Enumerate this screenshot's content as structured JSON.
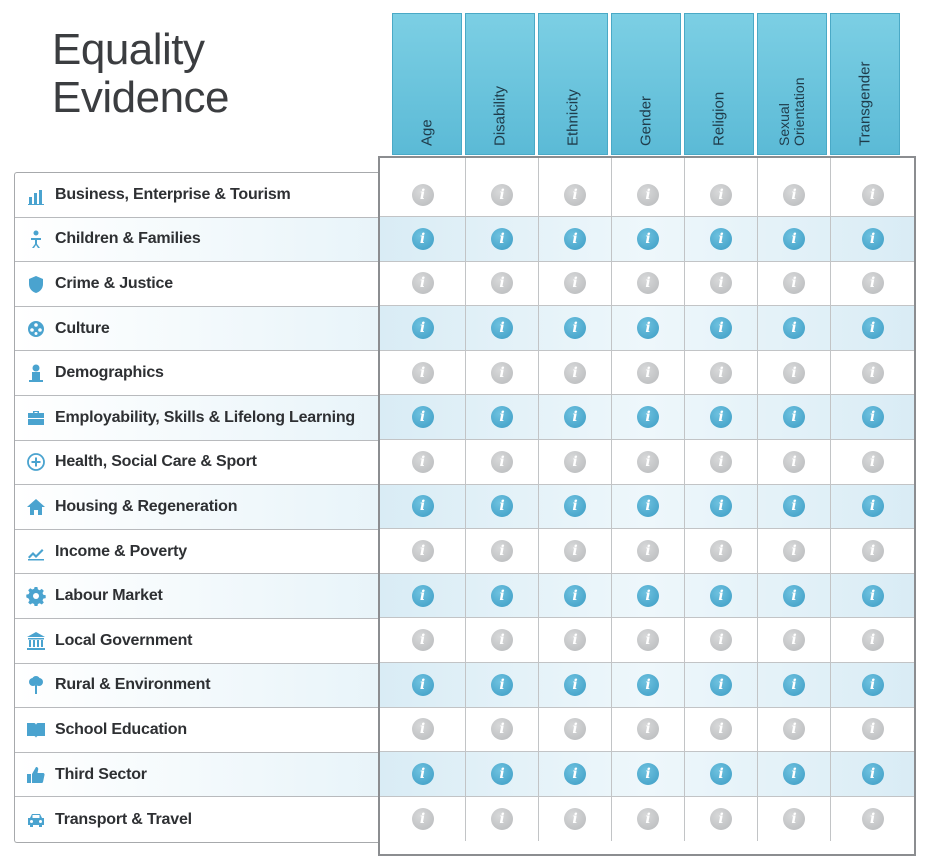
{
  "title": {
    "line1": "Equality",
    "line2": "Evidence"
  },
  "columns": [
    "Age",
    "Disability",
    "Ethnicity",
    "Gender",
    "Religion",
    "Sexual Orientation",
    "Transgender"
  ],
  "rows": [
    {
      "label": "Business, Enterprise & Tourism",
      "icon": "bar-chart-icon",
      "highlighted": false
    },
    {
      "label": "Children & Families",
      "icon": "family-icon",
      "highlighted": true
    },
    {
      "label": "Crime & Justice",
      "icon": "shield-icon",
      "highlighted": false
    },
    {
      "label": "Culture",
      "icon": "film-reel-icon",
      "highlighted": true
    },
    {
      "label": "Demographics",
      "icon": "person-icon",
      "highlighted": false
    },
    {
      "label": "Employability, Skills & Lifelong Learning",
      "icon": "briefcase-icon",
      "highlighted": true
    },
    {
      "label": "Health, Social Care & Sport",
      "icon": "plus-circle-icon",
      "highlighted": false
    },
    {
      "label": "Housing & Regeneration",
      "icon": "house-icon",
      "highlighted": true
    },
    {
      "label": "Income & Poverty",
      "icon": "line-chart-icon",
      "highlighted": false
    },
    {
      "label": "Labour Market",
      "icon": "gear-icon",
      "highlighted": true
    },
    {
      "label": "Local Government",
      "icon": "building-icon",
      "highlighted": false
    },
    {
      "label": "Rural & Environment",
      "icon": "tree-icon",
      "highlighted": true
    },
    {
      "label": "School Education",
      "icon": "book-icon",
      "highlighted": false
    },
    {
      "label": "Third Sector",
      "icon": "thumbs-up-icon",
      "highlighted": true
    },
    {
      "label": "Transport & Travel",
      "icon": "car-icon",
      "highlighted": false
    }
  ],
  "info_glyph": "i",
  "colors": {
    "header": "#5bbad6",
    "icon": "#4aa3cf",
    "info_active": "#3c9cc4",
    "info_inactive": "#b7b9bb"
  }
}
